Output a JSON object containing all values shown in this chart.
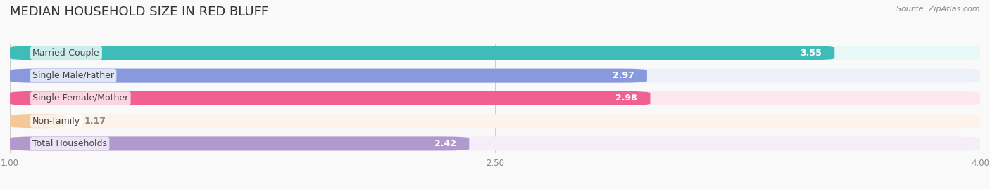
{
  "title": "MEDIAN HOUSEHOLD SIZE IN RED BLUFF",
  "source": "Source: ZipAtlas.com",
  "categories": [
    "Married-Couple",
    "Single Male/Father",
    "Single Female/Mother",
    "Non-family",
    "Total Households"
  ],
  "values": [
    3.55,
    2.97,
    2.98,
    1.17,
    2.42
  ],
  "bar_colors": [
    "#3dbcb8",
    "#8899dd",
    "#f06090",
    "#f5c89a",
    "#b099cc"
  ],
  "bar_bg_colors": [
    "#e8f7f7",
    "#eef0f9",
    "#fde8ef",
    "#fdf3ea",
    "#f3eef9"
  ],
  "xmin": 1.0,
  "xmax": 4.0,
  "xticks": [
    1.0,
    2.5,
    4.0
  ],
  "xtick_labels": [
    "1.00",
    "2.50",
    "4.00"
  ],
  "title_fontsize": 13,
  "label_fontsize": 9,
  "value_fontsize": 9,
  "background_color": "#f9f9f9"
}
